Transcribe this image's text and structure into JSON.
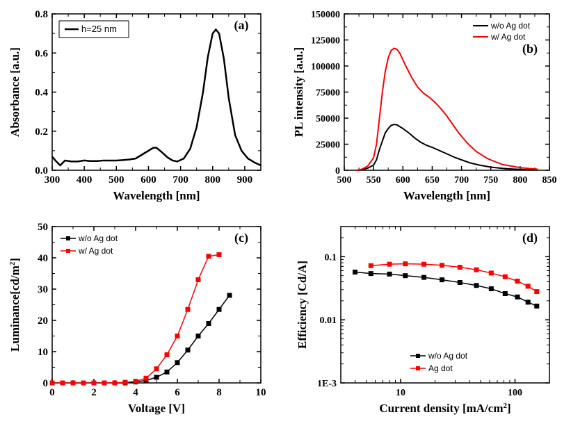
{
  "panel_a": {
    "type": "line",
    "label": "(a)",
    "xlabel": "Wavelength [nm]",
    "ylabel": "Absorbance [a.u.]",
    "xlim": [
      300,
      950
    ],
    "ylim": [
      0.0,
      0.8
    ],
    "xticks": [
      300,
      400,
      500,
      600,
      700,
      800,
      900
    ],
    "yticks": [
      0.0,
      0.2,
      0.4,
      0.6,
      0.8
    ],
    "legend": {
      "text": "h=25 nm",
      "color": "#000000",
      "pos": "top-left"
    },
    "series": [
      {
        "color": "#000000",
        "line_width": 2.5,
        "data": [
          [
            300,
            0.07
          ],
          [
            310,
            0.05
          ],
          [
            325,
            0.025
          ],
          [
            340,
            0.05
          ],
          [
            360,
            0.045
          ],
          [
            380,
            0.045
          ],
          [
            400,
            0.05
          ],
          [
            420,
            0.047
          ],
          [
            440,
            0.047
          ],
          [
            460,
            0.05
          ],
          [
            480,
            0.05
          ],
          [
            500,
            0.05
          ],
          [
            520,
            0.052
          ],
          [
            540,
            0.055
          ],
          [
            560,
            0.06
          ],
          [
            580,
            0.08
          ],
          [
            600,
            0.1
          ],
          [
            615,
            0.115
          ],
          [
            625,
            0.115
          ],
          [
            640,
            0.095
          ],
          [
            660,
            0.065
          ],
          [
            675,
            0.05
          ],
          [
            690,
            0.045
          ],
          [
            710,
            0.06
          ],
          [
            730,
            0.11
          ],
          [
            750,
            0.22
          ],
          [
            770,
            0.4
          ],
          [
            785,
            0.58
          ],
          [
            800,
            0.7
          ],
          [
            810,
            0.72
          ],
          [
            820,
            0.7
          ],
          [
            835,
            0.57
          ],
          [
            850,
            0.37
          ],
          [
            870,
            0.18
          ],
          [
            890,
            0.1
          ],
          [
            910,
            0.06
          ],
          [
            930,
            0.04
          ],
          [
            950,
            0.025
          ]
        ]
      }
    ],
    "label_fontsize": 17,
    "tick_fontsize": 15,
    "panel_label_fontsize": 18
  },
  "panel_b": {
    "type": "line",
    "label": "(b)",
    "xlabel": "Wavelength [nm]",
    "ylabel": "PL intensity [a.u.]",
    "xlim": [
      500,
      850
    ],
    "ylim": [
      0,
      150000
    ],
    "xticks": [
      500,
      550,
      600,
      650,
      700,
      750,
      800,
      850
    ],
    "yticks": [
      0,
      25000,
      50000,
      75000,
      100000,
      125000,
      150000
    ],
    "legend": {
      "pos": "top-right",
      "items": [
        {
          "text": "w/o Ag dot",
          "color": "#000000"
        },
        {
          "text": "w/ Ag dot",
          "color": "#ff0000"
        }
      ]
    },
    "series": [
      {
        "color": "#000000",
        "line_width": 2,
        "data": [
          [
            520,
            0
          ],
          [
            530,
            500
          ],
          [
            540,
            2000
          ],
          [
            550,
            5000
          ],
          [
            555,
            10000
          ],
          [
            560,
            20000
          ],
          [
            565,
            28000
          ],
          [
            570,
            36000
          ],
          [
            575,
            40000
          ],
          [
            580,
            43000
          ],
          [
            585,
            44000
          ],
          [
            590,
            43500
          ],
          [
            600,
            40000
          ],
          [
            612,
            35000
          ],
          [
            620,
            31000
          ],
          [
            630,
            27000
          ],
          [
            640,
            24000
          ],
          [
            650,
            22000
          ],
          [
            660,
            19500
          ],
          [
            670,
            17000
          ],
          [
            680,
            14500
          ],
          [
            690,
            12000
          ],
          [
            700,
            10000
          ],
          [
            715,
            7000
          ],
          [
            730,
            5000
          ],
          [
            750,
            3000
          ],
          [
            775,
            1500
          ],
          [
            800,
            800
          ],
          [
            830,
            300
          ]
        ]
      },
      {
        "color": "#ff0000",
        "line_width": 2,
        "data": [
          [
            520,
            0
          ],
          [
            530,
            1000
          ],
          [
            540,
            4000
          ],
          [
            550,
            12000
          ],
          [
            555,
            25000
          ],
          [
            560,
            50000
          ],
          [
            565,
            75000
          ],
          [
            570,
            95000
          ],
          [
            575,
            108000
          ],
          [
            580,
            115000
          ],
          [
            585,
            117000
          ],
          [
            590,
            116000
          ],
          [
            595,
            112000
          ],
          [
            605,
            100000
          ],
          [
            615,
            89000
          ],
          [
            625,
            80000
          ],
          [
            635,
            74000
          ],
          [
            645,
            70000
          ],
          [
            655,
            65000
          ],
          [
            665,
            59000
          ],
          [
            675,
            52000
          ],
          [
            685,
            44000
          ],
          [
            695,
            36000
          ],
          [
            710,
            26000
          ],
          [
            725,
            18000
          ],
          [
            745,
            11000
          ],
          [
            770,
            5500
          ],
          [
            800,
            2500
          ],
          [
            830,
            1000
          ]
        ]
      }
    ],
    "label_fontsize": 17,
    "tick_fontsize": 14,
    "panel_label_fontsize": 18
  },
  "panel_c": {
    "type": "line_markers",
    "label": "(c)",
    "xlabel": "Voltage [V]",
    "ylabel": "Luminance[cd/m²]",
    "ylabel_plain": "Luminance[cd/m",
    "ylabel_sup": "2",
    "ylabel_close": "]",
    "xlim": [
      0,
      10
    ],
    "ylim": [
      0,
      50
    ],
    "xticks": [
      0,
      2,
      4,
      6,
      8,
      10
    ],
    "yticks": [
      0,
      10,
      20,
      30,
      40,
      50
    ],
    "legend": {
      "pos": "top-left",
      "items": [
        {
          "text": "w/o Ag dot",
          "color": "#000000",
          "marker": "square"
        },
        {
          "text": "w/ Ag dot",
          "color": "#ff0000",
          "marker": "square"
        }
      ]
    },
    "series": [
      {
        "color": "#000000",
        "line_width": 1.5,
        "marker": "square",
        "marker_size": 6,
        "data": [
          [
            0,
            0
          ],
          [
            0.5,
            0
          ],
          [
            1,
            0
          ],
          [
            1.5,
            0
          ],
          [
            2,
            0
          ],
          [
            2.5,
            0
          ],
          [
            3,
            0
          ],
          [
            3.5,
            0
          ],
          [
            4,
            0.3
          ],
          [
            4.5,
            0.8
          ],
          [
            5,
            1.8
          ],
          [
            5.5,
            3.5
          ],
          [
            6,
            6.5
          ],
          [
            6.5,
            10.5
          ],
          [
            7,
            15
          ],
          [
            7.5,
            19
          ],
          [
            8,
            23.5
          ],
          [
            8.5,
            28
          ]
        ]
      },
      {
        "color": "#ff0000",
        "line_width": 1.5,
        "marker": "square",
        "marker_size": 6,
        "data": [
          [
            0,
            0
          ],
          [
            0.5,
            0
          ],
          [
            1,
            0
          ],
          [
            1.5,
            0
          ],
          [
            2,
            0
          ],
          [
            2.5,
            0
          ],
          [
            3,
            0
          ],
          [
            3.5,
            0.2
          ],
          [
            4,
            0.5
          ],
          [
            4.5,
            1.5
          ],
          [
            5,
            4.5
          ],
          [
            5.5,
            9
          ],
          [
            6,
            15
          ],
          [
            6.5,
            23.5
          ],
          [
            7,
            33
          ],
          [
            7.5,
            40.5
          ],
          [
            8,
            41
          ]
        ]
      }
    ],
    "label_fontsize": 17,
    "tick_fontsize": 15,
    "panel_label_fontsize": 18
  },
  "panel_d": {
    "type": "loglog_markers",
    "label": "(d)",
    "xlabel": "Current density [mA/cm²]",
    "xlabel_plain": "Current density [mA/cm",
    "xlabel_sup": "2",
    "xlabel_close": "]",
    "ylabel": "Efficiency [Cd/A]",
    "xlim": [
      3,
      200
    ],
    "ylim": [
      0.001,
      0.3
    ],
    "xticks_major": [
      10,
      100
    ],
    "yticks_major": [
      0.001,
      0.01,
      0.1
    ],
    "ytick_labels": [
      "1E-3",
      "0.01",
      "0.1"
    ],
    "legend": {
      "pos": "bottom-center",
      "items": [
        {
          "text": "w/o Ag dot",
          "color": "#000000",
          "marker": "square"
        },
        {
          "text": "Ag dot",
          "color": "#ff0000",
          "marker": "square"
        }
      ]
    },
    "series": [
      {
        "color": "#000000",
        "line_width": 1.5,
        "marker": "square",
        "marker_size": 6,
        "data": [
          [
            4,
            0.057
          ],
          [
            5.5,
            0.054
          ],
          [
            8,
            0.053
          ],
          [
            11,
            0.05
          ],
          [
            16,
            0.047
          ],
          [
            23,
            0.043
          ],
          [
            33,
            0.039
          ],
          [
            46,
            0.035
          ],
          [
            62,
            0.031
          ],
          [
            82,
            0.026
          ],
          [
            105,
            0.023
          ],
          [
            130,
            0.019
          ],
          [
            155,
            0.0165
          ]
        ]
      },
      {
        "color": "#ff0000",
        "line_width": 1.5,
        "marker": "square",
        "marker_size": 6,
        "data": [
          [
            5.5,
            0.072
          ],
          [
            8,
            0.076
          ],
          [
            11,
            0.077
          ],
          [
            16,
            0.076
          ],
          [
            23,
            0.073
          ],
          [
            33,
            0.068
          ],
          [
            46,
            0.062
          ],
          [
            62,
            0.055
          ],
          [
            82,
            0.048
          ],
          [
            105,
            0.041
          ],
          [
            130,
            0.034
          ],
          [
            155,
            0.028
          ]
        ]
      }
    ],
    "label_fontsize": 17,
    "tick_fontsize": 14,
    "panel_label_fontsize": 18
  },
  "colors": {
    "black": "#000000",
    "red": "#ff0000",
    "bg": "#ffffff"
  }
}
